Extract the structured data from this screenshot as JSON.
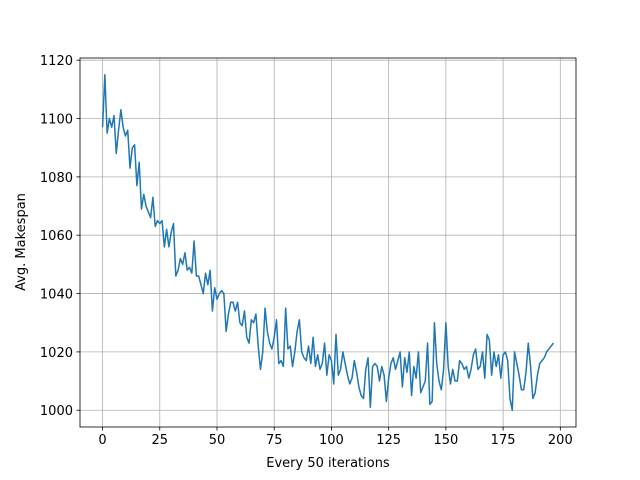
{
  "chart_data": {
    "type": "line",
    "xlabel": "Every 50 iterations",
    "ylabel": "Avg. Makespan",
    "color": "#1f77b4",
    "grid": true,
    "xlim": [
      -9.85,
      206.85
    ],
    "ylim": [
      994.25,
      1120.75
    ],
    "xticks": [
      0,
      25,
      50,
      75,
      100,
      125,
      150,
      175,
      200
    ],
    "yticks": [
      1000,
      1020,
      1040,
      1060,
      1080,
      1100,
      1120
    ],
    "x": [
      0,
      1,
      2,
      3,
      4,
      5,
      6,
      7,
      8,
      9,
      10,
      11,
      12,
      13,
      14,
      15,
      16,
      17,
      18,
      19,
      20,
      21,
      22,
      23,
      24,
      25,
      26,
      27,
      28,
      29,
      30,
      31,
      32,
      33,
      34,
      35,
      36,
      37,
      38,
      39,
      40,
      41,
      42,
      43,
      44,
      45,
      46,
      47,
      48,
      49,
      50,
      51,
      52,
      53,
      54,
      55,
      56,
      57,
      58,
      59,
      60,
      61,
      62,
      63,
      64,
      65,
      66,
      67,
      68,
      69,
      70,
      71,
      72,
      73,
      74,
      75,
      76,
      77,
      78,
      79,
      80,
      81,
      82,
      83,
      84,
      85,
      86,
      87,
      88,
      89,
      90,
      91,
      92,
      93,
      94,
      95,
      96,
      97,
      98,
      99,
      100,
      101,
      102,
      103,
      104,
      105,
      106,
      107,
      108,
      109,
      110,
      111,
      112,
      113,
      114,
      115,
      116,
      117,
      118,
      119,
      120,
      121,
      122,
      123,
      124,
      125,
      126,
      127,
      128,
      129,
      130,
      131,
      132,
      133,
      134,
      135,
      136,
      137,
      138,
      139,
      140,
      141,
      142,
      143,
      144,
      145,
      146,
      147,
      148,
      149,
      150,
      151,
      152,
      153,
      154,
      155,
      156,
      157,
      158,
      159,
      160,
      161,
      162,
      163,
      164,
      165,
      166,
      167,
      168,
      169,
      170,
      171,
      172,
      173,
      174,
      175,
      176,
      177,
      178,
      179,
      180,
      181,
      182,
      183,
      184,
      185,
      186,
      187,
      188,
      189,
      190,
      191,
      192,
      193,
      194,
      195,
      196,
      197
    ],
    "values": [
      1097,
      1115,
      1095,
      1100,
      1097,
      1101,
      1088,
      1096,
      1103,
      1097,
      1094,
      1096,
      1083,
      1090,
      1091,
      1077,
      1085,
      1069,
      1074,
      1070,
      1068,
      1066,
      1073,
      1063,
      1065,
      1064,
      1065,
      1056,
      1062,
      1056,
      1061,
      1064,
      1046,
      1048,
      1052,
      1050,
      1054,
      1048,
      1049,
      1047,
      1058,
      1046,
      1046,
      1043,
      1040,
      1047,
      1043,
      1048,
      1034,
      1042,
      1038,
      1040,
      1041,
      1040,
      1027,
      1033,
      1037,
      1037,
      1034,
      1037,
      1030,
      1029,
      1034,
      1025,
      1023,
      1031,
      1030,
      1033,
      1022,
      1014,
      1020,
      1035,
      1027,
      1023,
      1021,
      1025,
      1031,
      1016,
      1017,
      1015,
      1035,
      1021,
      1022,
      1015,
      1020,
      1027,
      1031,
      1020,
      1018,
      1017,
      1022,
      1016,
      1025,
      1015,
      1019,
      1014,
      1016,
      1023,
      1012,
      1019,
      1017,
      1009,
      1026,
      1012,
      1014,
      1020,
      1016,
      1012,
      1009,
      1011,
      1017,
      1013,
      1008,
      1005,
      1004,
      1014,
      1018,
      1001,
      1015,
      1016,
      1015,
      1010,
      1015,
      1012,
      1003,
      1011,
      1016,
      1018,
      1014,
      1017,
      1020,
      1008,
      1018,
      1013,
      1020,
      1005,
      1015,
      1011,
      1020,
      1006,
      1008,
      1010,
      1023,
      1002,
      1003,
      1030,
      1016,
      1010,
      1007,
      1014,
      1030,
      1015,
      1009,
      1014,
      1010,
      1010,
      1017,
      1016,
      1014,
      1015,
      1011,
      1014,
      1019,
      1021,
      1014,
      1015,
      1020,
      1011,
      1026,
      1024,
      1012,
      1020,
      1015,
      1019,
      1011,
      1019,
      1020,
      1017,
      1004,
      1000,
      1020,
      1016,
      1012,
      1007,
      1007,
      1013,
      1023,
      1015,
      1004,
      1006,
      1012,
      1016,
      1017,
      1018,
      1020,
      1021,
      1022,
      1023
    ]
  }
}
